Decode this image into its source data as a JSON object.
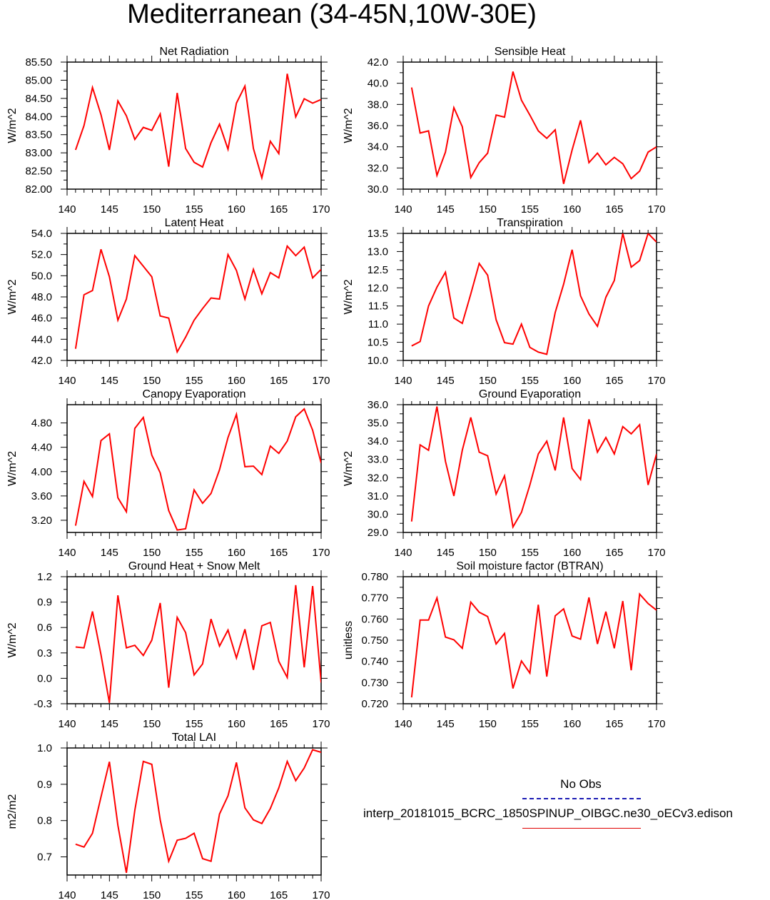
{
  "title": "Mediterranean (34-45N,10W-30E)",
  "colors": {
    "series": "#ff0000",
    "noobs": "#1c1cb4",
    "axis": "#000000"
  },
  "chart_data": [
    {
      "type": "line",
      "title": "Net Radiation",
      "ylabel": "W/m^2",
      "xlim": [
        140,
        170
      ],
      "ylim": [
        82.0,
        85.5
      ],
      "xticks": [
        "140",
        "145",
        "150",
        "155",
        "160",
        "165",
        "170"
      ],
      "yticks": [
        "82.00",
        "82.50",
        "83.00",
        "83.50",
        "84.00",
        "84.50",
        "85.00",
        "85.50"
      ],
      "x": [
        141,
        142,
        143,
        144,
        145,
        146,
        147,
        148,
        149,
        150,
        151,
        152,
        153,
        154,
        155,
        156,
        157,
        158,
        159,
        160,
        161,
        162,
        163,
        164,
        165,
        166,
        167,
        168,
        169,
        170
      ],
      "values": [
        83.08,
        83.75,
        84.8,
        84.05,
        83.08,
        84.43,
        84.02,
        83.37,
        83.7,
        83.62,
        84.07,
        82.62,
        84.65,
        83.12,
        82.74,
        82.61,
        83.28,
        83.79,
        83.1,
        84.37,
        84.84,
        83.12,
        82.31,
        83.32,
        82.98,
        85.18,
        83.99,
        84.49,
        84.37,
        84.47
      ]
    },
    {
      "type": "line",
      "title": "Sensible Heat",
      "ylabel": "W/m^2",
      "xlim": [
        140,
        170
      ],
      "ylim": [
        30.0,
        42.0
      ],
      "xticks": [
        "140",
        "145",
        "150",
        "155",
        "160",
        "165",
        "170"
      ],
      "yticks": [
        "30.0",
        "32.0",
        "34.0",
        "36.0",
        "38.0",
        "40.0",
        "42.0"
      ],
      "x": [
        141,
        142,
        143,
        144,
        145,
        146,
        147,
        148,
        149,
        150,
        151,
        152,
        153,
        154,
        155,
        156,
        157,
        158,
        159,
        160,
        161,
        162,
        163,
        164,
        165,
        166,
        167,
        168,
        169,
        170
      ],
      "values": [
        39.6,
        35.3,
        35.5,
        31.3,
        33.5,
        37.7,
        35.9,
        31.1,
        32.5,
        33.4,
        37.0,
        36.8,
        41.1,
        38.4,
        37.0,
        35.5,
        34.8,
        35.6,
        30.5,
        33.7,
        36.5,
        32.5,
        33.4,
        32.3,
        33.0,
        32.4,
        31.0,
        31.7,
        33.5,
        34.0
      ]
    },
    {
      "type": "line",
      "title": "Latent Heat",
      "ylabel": "W/m^2",
      "xlim": [
        140,
        170
      ],
      "ylim": [
        42.0,
        54.0
      ],
      "xticks": [
        "140",
        "145",
        "150",
        "155",
        "160",
        "165",
        "170"
      ],
      "yticks": [
        "42.0",
        "44.0",
        "46.0",
        "48.0",
        "50.0",
        "52.0",
        "54.0"
      ],
      "x": [
        141,
        142,
        143,
        144,
        145,
        146,
        147,
        148,
        149,
        150,
        151,
        152,
        153,
        154,
        155,
        156,
        157,
        158,
        159,
        160,
        161,
        162,
        163,
        164,
        165,
        166,
        167,
        168,
        169,
        170
      ],
      "values": [
        43.1,
        48.2,
        48.6,
        52.5,
        49.9,
        45.8,
        47.8,
        51.9,
        50.9,
        49.9,
        46.2,
        46.0,
        42.8,
        44.2,
        45.8,
        46.9,
        47.9,
        47.8,
        52.0,
        50.5,
        47.8,
        50.6,
        48.3,
        50.3,
        49.8,
        52.8,
        51.9,
        52.7,
        49.8,
        50.6
      ]
    },
    {
      "type": "line",
      "title": "Transpiration",
      "ylabel": "W/m^2",
      "xlim": [
        140,
        170
      ],
      "ylim": [
        10.0,
        13.5
      ],
      "xticks": [
        "140",
        "145",
        "150",
        "155",
        "160",
        "165",
        "170"
      ],
      "yticks": [
        "10.0",
        "10.5",
        "11.0",
        "11.5",
        "12.0",
        "12.5",
        "13.0",
        "13.5"
      ],
      "x": [
        141,
        142,
        143,
        144,
        145,
        146,
        147,
        148,
        149,
        150,
        151,
        152,
        153,
        154,
        155,
        156,
        157,
        158,
        159,
        160,
        161,
        162,
        163,
        164,
        165,
        166,
        167,
        168,
        169,
        170
      ],
      "values": [
        10.4,
        10.52,
        11.5,
        12.02,
        12.43,
        11.17,
        11.02,
        11.83,
        12.67,
        12.35,
        11.12,
        10.49,
        10.45,
        11.0,
        10.36,
        10.23,
        10.17,
        11.32,
        12.1,
        13.05,
        11.78,
        11.28,
        10.94,
        11.74,
        12.2,
        13.5,
        12.57,
        12.75,
        13.5,
        13.26
      ]
    },
    {
      "type": "line",
      "title": "Canopy Evaporation",
      "ylabel": "W/m^2",
      "xlim": [
        140,
        170
      ],
      "ylim": [
        3.0,
        5.1
      ],
      "xticks": [
        "140",
        "145",
        "150",
        "155",
        "160",
        "165",
        "170"
      ],
      "yticks": [
        "3.20",
        "3.60",
        "4.00",
        "4.40",
        "4.80"
      ],
      "ytick_values": [
        3.2,
        3.6,
        4.0,
        4.4,
        4.8
      ],
      "x": [
        141,
        142,
        143,
        144,
        145,
        146,
        147,
        148,
        149,
        150,
        151,
        152,
        153,
        154,
        155,
        156,
        157,
        158,
        159,
        160,
        161,
        162,
        163,
        164,
        165,
        166,
        167,
        168,
        169,
        170
      ],
      "values": [
        3.11,
        3.84,
        3.59,
        4.51,
        4.62,
        3.57,
        3.34,
        4.71,
        4.89,
        4.27,
        3.98,
        3.36,
        3.04,
        3.06,
        3.7,
        3.48,
        3.64,
        4.03,
        4.56,
        4.94,
        4.08,
        4.09,
        3.95,
        4.42,
        4.3,
        4.5,
        4.9,
        5.03,
        4.68,
        4.14
      ]
    },
    {
      "type": "line",
      "title": "Ground Evaporation",
      "ylabel": "W/m^2",
      "xlim": [
        140,
        170
      ],
      "ylim": [
        29.0,
        36.0
      ],
      "xticks": [
        "140",
        "145",
        "150",
        "155",
        "160",
        "165",
        "170"
      ],
      "yticks": [
        "29.0",
        "30.0",
        "31.0",
        "32.0",
        "33.0",
        "34.0",
        "35.0",
        "36.0"
      ],
      "x": [
        141,
        142,
        143,
        144,
        145,
        146,
        147,
        148,
        149,
        150,
        151,
        152,
        153,
        154,
        155,
        156,
        157,
        158,
        159,
        160,
        161,
        162,
        163,
        164,
        165,
        166,
        167,
        168,
        169,
        170
      ],
      "values": [
        29.6,
        33.8,
        33.5,
        35.9,
        32.9,
        31.0,
        33.5,
        35.3,
        33.4,
        33.2,
        31.1,
        32.1,
        29.3,
        30.1,
        31.6,
        33.3,
        34.0,
        32.4,
        35.3,
        32.5,
        31.9,
        35.2,
        33.4,
        34.2,
        33.3,
        34.8,
        34.4,
        34.9,
        31.6,
        33.3
      ]
    },
    {
      "type": "line",
      "title": "Ground Heat + Snow Melt",
      "ylabel": "W/m^2",
      "xlim": [
        140,
        170
      ],
      "ylim": [
        -0.3,
        1.2
      ],
      "xticks": [
        "140",
        "145",
        "150",
        "155",
        "160",
        "165",
        "170"
      ],
      "yticks": [
        "-0.3",
        "0.0",
        "0.3",
        "0.6",
        "0.9",
        "1.2"
      ],
      "x": [
        141,
        142,
        143,
        144,
        145,
        146,
        147,
        148,
        149,
        150,
        151,
        152,
        153,
        154,
        155,
        156,
        157,
        158,
        159,
        160,
        161,
        162,
        163,
        164,
        165,
        166,
        167,
        168,
        169,
        170
      ],
      "values": [
        0.37,
        0.36,
        0.79,
        0.28,
        -0.29,
        0.98,
        0.36,
        0.39,
        0.27,
        0.45,
        0.89,
        -0.11,
        0.72,
        0.54,
        0.04,
        0.17,
        0.7,
        0.38,
        0.57,
        0.24,
        0.58,
        0.1,
        0.62,
        0.66,
        0.2,
        0.01,
        1.1,
        0.13,
        1.09,
        -0.05
      ]
    },
    {
      "type": "line",
      "title": "Soil moisture factor (BTRAN)",
      "ylabel": "unitless",
      "xlim": [
        140,
        170
      ],
      "ylim": [
        0.72,
        0.78
      ],
      "xticks": [
        "140",
        "145",
        "150",
        "155",
        "160",
        "165",
        "170"
      ],
      "yticks": [
        "0.720",
        "0.730",
        "0.740",
        "0.750",
        "0.760",
        "0.770",
        "0.780"
      ],
      "x": [
        141,
        142,
        143,
        144,
        145,
        146,
        147,
        148,
        149,
        150,
        151,
        152,
        153,
        154,
        155,
        156,
        157,
        158,
        159,
        160,
        161,
        162,
        163,
        164,
        165,
        166,
        167,
        168,
        169,
        170
      ],
      "values": [
        0.723,
        0.7595,
        0.7595,
        0.77,
        0.7515,
        0.7502,
        0.7462,
        0.768,
        0.7632,
        0.7612,
        0.7482,
        0.7532,
        0.7272,
        0.7402,
        0.7345,
        0.7668,
        0.7328,
        0.7615,
        0.7648,
        0.752,
        0.7505,
        0.7702,
        0.7482,
        0.7635,
        0.7462,
        0.7685,
        0.7358,
        0.7718,
        0.7673,
        0.7642
      ]
    },
    {
      "type": "line",
      "title": "Total LAI",
      "ylabel": "m2/m2",
      "xlim": [
        140,
        170
      ],
      "ylim": [
        0.65,
        1.0
      ],
      "xticks": [
        "140",
        "145",
        "150",
        "155",
        "160",
        "165",
        "170"
      ],
      "yticks": [
        "0.7",
        "0.8",
        "0.9",
        "1.0"
      ],
      "ytick_values": [
        0.7,
        0.8,
        0.9,
        1.0
      ],
      "x": [
        141,
        142,
        143,
        144,
        145,
        146,
        147,
        148,
        149,
        150,
        151,
        152,
        153,
        154,
        155,
        156,
        157,
        158,
        159,
        160,
        161,
        162,
        163,
        164,
        165,
        166,
        167,
        168,
        169,
        170
      ],
      "values": [
        0.735,
        0.727,
        0.765,
        0.865,
        0.962,
        0.787,
        0.656,
        0.828,
        0.963,
        0.955,
        0.802,
        0.688,
        0.746,
        0.751,
        0.765,
        0.695,
        0.688,
        0.818,
        0.868,
        0.96,
        0.835,
        0.802,
        0.792,
        0.833,
        0.89,
        0.963,
        0.91,
        0.945,
        0.995,
        0.988
      ]
    }
  ],
  "legend": {
    "noobs_label": "No Obs",
    "model_label": "interp_20181015_BCRC_1850SPINUP_OIBGC.ne30_oECv3.edison"
  }
}
